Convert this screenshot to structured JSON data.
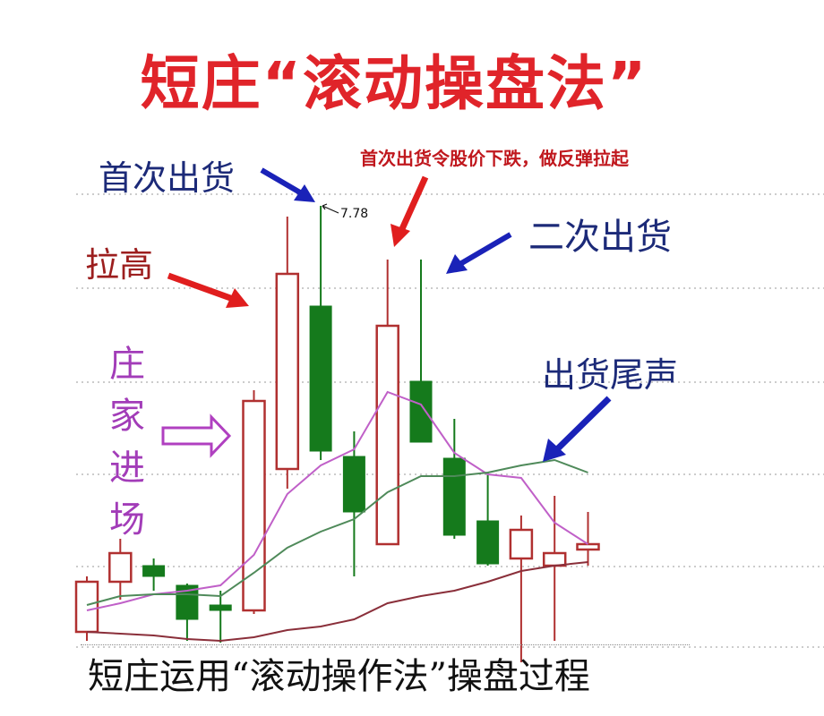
{
  "title": "短庄“滚动操盘法”",
  "annotations": {
    "first_sell": "首次出货",
    "first_sell_note": "首次出货令股价下跌，做反弹拉起",
    "second_sell": "二次出货",
    "pull_up": "拉高",
    "dealer_enters": "庄家进场",
    "sell_end": "出货尾声",
    "high_label": "7.78"
  },
  "caption": "短庄运用“滚动操作法”操盘过程",
  "colors": {
    "up": "#b03030",
    "down": "#157a1c",
    "ma_short": "#c060c8",
    "ma_mid": "#4f8a5a",
    "ma_long": "#8a2f3a",
    "title": "#e0242a",
    "blue": "#1c2a78"
  },
  "chart_data": {
    "type": "candlestick",
    "title": "",
    "xlabel": "",
    "ylabel": "",
    "grid": true,
    "high_marker": 7.78,
    "candles": [
      {
        "o": 5.4,
        "h": 5.71,
        "l": 5.35,
        "c": 5.68
      },
      {
        "o": 5.68,
        "h": 5.92,
        "l": 5.58,
        "c": 5.84
      },
      {
        "o": 5.77,
        "h": 5.81,
        "l": 5.63,
        "c": 5.71
      },
      {
        "o": 5.66,
        "h": 5.67,
        "l": 5.35,
        "c": 5.47
      },
      {
        "o": 5.55,
        "h": 5.63,
        "l": 5.34,
        "c": 5.52
      },
      {
        "o": 5.52,
        "h": 6.75,
        "l": 5.5,
        "c": 6.69
      },
      {
        "o": 6.31,
        "h": 7.72,
        "l": 6.2,
        "c": 7.4
      },
      {
        "o": 7.22,
        "h": 7.78,
        "l": 6.36,
        "c": 6.41
      },
      {
        "o": 6.38,
        "h": 6.52,
        "l": 5.71,
        "c": 6.07
      },
      {
        "o": 5.89,
        "h": 7.48,
        "l": 5.89,
        "c": 7.11
      },
      {
        "o": 6.8,
        "h": 7.48,
        "l": 6.46,
        "c": 6.46
      },
      {
        "o": 6.37,
        "h": 6.59,
        "l": 5.92,
        "c": 5.94
      },
      {
        "o": 6.02,
        "h": 6.29,
        "l": 5.77,
        "c": 5.78
      },
      {
        "o": 5.81,
        "h": 6.05,
        "l": 5.23,
        "c": 5.97
      },
      {
        "o": 5.77,
        "h": 6.16,
        "l": 5.35,
        "c": 5.84
      },
      {
        "o": 5.86,
        "h": 6.07,
        "l": 5.77,
        "c": 5.89
      }
    ],
    "moving_averages": [
      {
        "key": "ma_short",
        "values": [
          5.52,
          5.56,
          5.61,
          5.63,
          5.66,
          5.83,
          6.17,
          6.33,
          6.42,
          6.74,
          6.67,
          6.4,
          6.28,
          6.26,
          6.01,
          5.89
        ]
      },
      {
        "key": "ma_mid",
        "values": [
          5.55,
          5.6,
          5.61,
          5.61,
          5.6,
          5.73,
          5.87,
          5.96,
          6.03,
          6.18,
          6.27,
          6.27,
          6.29,
          6.33,
          6.36,
          6.29
        ]
      },
      {
        "key": "ma_long",
        "values": [
          5.4,
          5.39,
          5.38,
          5.36,
          5.35,
          5.37,
          5.41,
          5.43,
          5.47,
          5.56,
          5.6,
          5.63,
          5.68,
          5.74,
          5.77,
          5.79
        ]
      }
    ]
  }
}
